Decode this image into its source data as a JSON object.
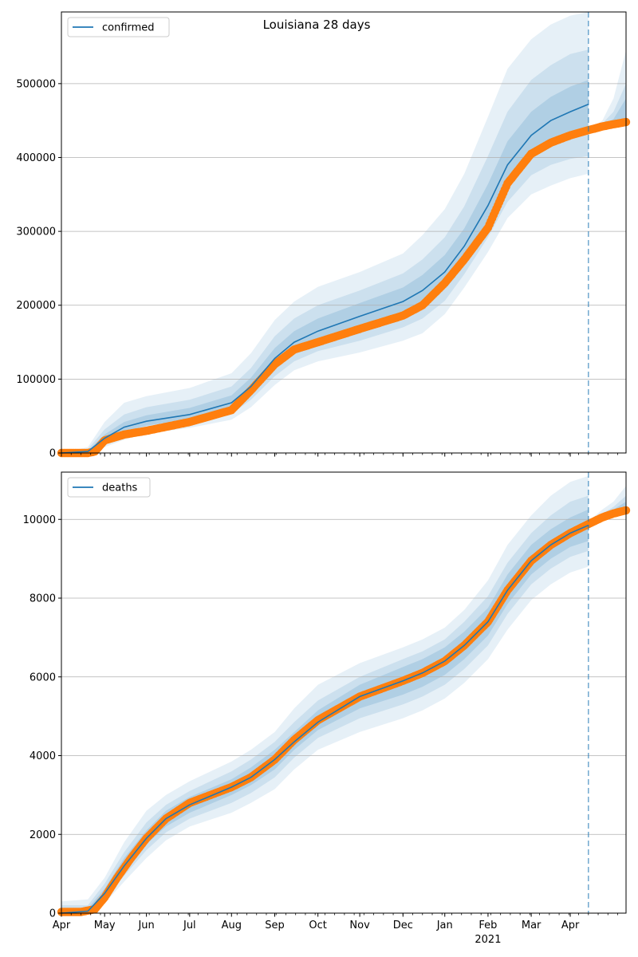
{
  "title": "Louisiana 28 days",
  "colors": {
    "model": "#1f77b4",
    "observed": "#ff7f0e",
    "band": "#1f77b4",
    "grid": "#b0b0b0"
  },
  "x_axis": {
    "tick_labels": [
      "Apr",
      "May",
      "Jun",
      "Jul",
      "Aug",
      "Sep",
      "Oct",
      "Nov",
      "Dec",
      "Jan",
      "Feb",
      "Mar",
      "Apr"
    ],
    "year_label": "2021"
  },
  "chart_data": [
    {
      "type": "line",
      "legend": "confirmed",
      "legend_position": "top-left",
      "grid": "horizontal",
      "x_range": [
        "2020-03-01",
        "2021-04-10"
      ],
      "ylim": [
        0,
        597000
      ],
      "yticks": [
        0,
        100000,
        200000,
        300000,
        400000,
        500000
      ],
      "forecast_start": "2021-03-14",
      "model_median": {
        "x": [
          "2020-03-01",
          "2020-03-20",
          "2020-04-01",
          "2020-04-15",
          "2020-05-01",
          "2020-06-01",
          "2020-07-01",
          "2020-07-15",
          "2020-08-01",
          "2020-08-15",
          "2020-09-01",
          "2020-10-01",
          "2020-11-01",
          "2020-11-15",
          "2020-12-01",
          "2020-12-15",
          "2021-01-01",
          "2021-01-15",
          "2021-02-01",
          "2021-02-15",
          "2021-03-01",
          "2021-03-14"
        ],
        "y": [
          0,
          2000,
          20000,
          35000,
          43000,
          52000,
          68000,
          90000,
          128000,
          150000,
          165000,
          185000,
          205000,
          220000,
          245000,
          280000,
          335000,
          390000,
          430000,
          450000,
          462000,
          472000
        ]
      },
      "bands": [
        {
          "level": "outer",
          "x": [
            "2020-03-01",
            "2020-03-20",
            "2020-04-01",
            "2020-04-15",
            "2020-05-01",
            "2020-06-01",
            "2020-07-01",
            "2020-07-15",
            "2020-08-01",
            "2020-08-15",
            "2020-09-01",
            "2020-10-01",
            "2020-11-01",
            "2020-11-15",
            "2020-12-01",
            "2020-12-15",
            "2021-01-01",
            "2021-01-15",
            "2021-02-01",
            "2021-02-15",
            "2021-03-01",
            "2021-03-14"
          ],
          "lower": [
            0,
            0,
            8000,
            18000,
            26000,
            34000,
            45000,
            62000,
            92000,
            112000,
            124000,
            136000,
            152000,
            162000,
            188000,
            224000,
            272000,
            318000,
            350000,
            362000,
            372000,
            378000
          ],
          "upper": [
            0,
            8000,
            42000,
            68000,
            77000,
            88000,
            108000,
            135000,
            180000,
            205000,
            225000,
            245000,
            270000,
            295000,
            330000,
            378000,
            455000,
            520000,
            560000,
            580000,
            592000,
            597000
          ]
        },
        {
          "level": "middle",
          "x": [
            "2020-03-01",
            "2020-03-20",
            "2020-04-01",
            "2020-04-15",
            "2020-05-01",
            "2020-06-01",
            "2020-07-01",
            "2020-07-15",
            "2020-08-01",
            "2020-08-15",
            "2020-09-01",
            "2020-10-01",
            "2020-11-01",
            "2020-11-15",
            "2020-12-01",
            "2020-12-15",
            "2021-01-01",
            "2021-01-15",
            "2021-02-01",
            "2021-02-15",
            "2021-03-01",
            "2021-03-14"
          ],
          "lower": [
            0,
            0,
            12000,
            24000,
            32000,
            40000,
            53000,
            72000,
            104000,
            124000,
            138000,
            152000,
            170000,
            182000,
            206000,
            242000,
            292000,
            340000,
            376000,
            390000,
            398000,
            402000
          ],
          "upper": [
            0,
            5000,
            32000,
            52000,
            62000,
            72000,
            90000,
            115000,
            158000,
            182000,
            200000,
            220000,
            243000,
            262000,
            292000,
            334000,
            402000,
            462000,
            505000,
            525000,
            540000,
            546000
          ]
        },
        {
          "level": "inner",
          "x": [
            "2020-03-01",
            "2020-03-20",
            "2020-04-01",
            "2020-04-15",
            "2020-05-01",
            "2020-06-01",
            "2020-07-01",
            "2020-07-15",
            "2020-08-01",
            "2020-08-15",
            "2020-09-01",
            "2020-10-01",
            "2020-11-01",
            "2020-11-15",
            "2020-12-01",
            "2020-12-15",
            "2021-01-01",
            "2021-01-15",
            "2021-02-01",
            "2021-02-15",
            "2021-03-01",
            "2021-03-14"
          ],
          "lower": [
            0,
            0,
            16000,
            29000,
            37000,
            46000,
            60000,
            80000,
            115000,
            136000,
            151000,
            168000,
            187000,
            200000,
            224000,
            260000,
            312000,
            364000,
            402000,
            418000,
            428000,
            432000
          ],
          "upper": [
            0,
            3000,
            25000,
            42000,
            51000,
            61000,
            78000,
            102000,
            142000,
            165000,
            182000,
            203000,
            224000,
            241000,
            268000,
            304000,
            364000,
            422000,
            462000,
            482000,
            496000,
            505000
          ]
        }
      ],
      "future_bands": [
        {
          "level": "outer",
          "x": [
            "2021-03-14",
            "2021-03-24",
            "2021-04-01",
            "2021-04-10"
          ],
          "lower": [
            436000,
            440000,
            443000,
            446000
          ],
          "upper": [
            438000,
            450000,
            480000,
            545000
          ]
        },
        {
          "level": "middle",
          "x": [
            "2021-03-14",
            "2021-03-24",
            "2021-04-01",
            "2021-04-10"
          ],
          "lower": [
            436000,
            441000,
            444000,
            447000
          ],
          "upper": [
            437000,
            446000,
            462000,
            500000
          ]
        },
        {
          "level": "inner",
          "x": [
            "2021-03-14",
            "2021-03-24",
            "2021-04-01",
            "2021-04-10"
          ],
          "lower": [
            436000,
            442000,
            445000,
            448000
          ],
          "upper": [
            437000,
            444000,
            452000,
            480000
          ]
        }
      ],
      "observed": {
        "x": [
          "2020-03-01",
          "2020-03-20",
          "2020-03-25",
          "2020-04-01",
          "2020-04-15",
          "2020-05-01",
          "2020-06-01",
          "2020-07-01",
          "2020-07-15",
          "2020-08-01",
          "2020-08-15",
          "2020-09-01",
          "2020-10-01",
          "2020-11-01",
          "2020-11-15",
          "2020-12-01",
          "2020-12-15",
          "2021-01-01",
          "2021-01-15",
          "2021-02-01",
          "2021-02-15",
          "2021-03-01",
          "2021-03-14",
          "2021-03-24",
          "2021-04-01",
          "2021-04-10"
        ],
        "y": [
          0,
          0,
          2000,
          17000,
          25000,
          30000,
          42000,
          58000,
          85000,
          120000,
          140000,
          150000,
          168000,
          186000,
          200000,
          230000,
          262000,
          305000,
          365000,
          405000,
          420000,
          430000,
          437000,
          442000,
          445000,
          448000
        ]
      }
    },
    {
      "type": "line",
      "legend": "deaths",
      "legend_position": "top-left",
      "grid": "horizontal",
      "x_range": [
        "2020-03-01",
        "2021-04-10"
      ],
      "ylim": [
        0,
        11200
      ],
      "yticks": [
        0,
        2000,
        4000,
        6000,
        8000,
        10000
      ],
      "forecast_start": "2021-03-14",
      "model_median": {
        "x": [
          "2020-03-01",
          "2020-03-20",
          "2020-04-01",
          "2020-04-15",
          "2020-05-01",
          "2020-05-15",
          "2020-06-01",
          "2020-07-01",
          "2020-07-15",
          "2020-08-01",
          "2020-08-15",
          "2020-09-01",
          "2020-10-01",
          "2020-11-01",
          "2020-11-15",
          "2020-12-01",
          "2020-12-15",
          "2021-01-01",
          "2021-01-15",
          "2021-02-01",
          "2021-02-15",
          "2021-03-01",
          "2021-03-14"
        ],
        "y": [
          0,
          50,
          500,
          1200,
          1900,
          2400,
          2750,
          3200,
          3450,
          3900,
          4350,
          4850,
          5500,
          5900,
          6100,
          6400,
          6800,
          7400,
          8200,
          8950,
          9350,
          9650,
          9850
        ]
      },
      "bands": [
        {
          "level": "outer",
          "x": [
            "2020-03-01",
            "2020-03-20",
            "2020-04-01",
            "2020-04-15",
            "2020-05-01",
            "2020-05-15",
            "2020-06-01",
            "2020-07-01",
            "2020-07-15",
            "2020-08-01",
            "2020-08-15",
            "2020-09-01",
            "2020-10-01",
            "2020-11-01",
            "2020-11-15",
            "2020-12-01",
            "2020-12-15",
            "2021-01-01",
            "2021-01-15",
            "2021-02-01",
            "2021-02-15",
            "2021-03-01",
            "2021-03-14"
          ],
          "lower": [
            0,
            0,
            250,
            800,
            1400,
            1850,
            2200,
            2550,
            2800,
            3150,
            3650,
            4150,
            4600,
            4950,
            5150,
            5450,
            5850,
            6450,
            7200,
            7950,
            8350,
            8650,
            8800
          ],
          "upper": [
            300,
            350,
            900,
            1800,
            2600,
            3000,
            3350,
            3850,
            4150,
            4600,
            5200,
            5800,
            6350,
            6750,
            6950,
            7250,
            7700,
            8450,
            9350,
            10100,
            10600,
            10950,
            11100
          ]
        },
        {
          "level": "middle",
          "x": [
            "2020-03-01",
            "2020-03-20",
            "2020-04-01",
            "2020-04-15",
            "2020-05-01",
            "2020-05-15",
            "2020-06-01",
            "2020-07-01",
            "2020-07-15",
            "2020-08-01",
            "2020-08-15",
            "2020-09-01",
            "2020-10-01",
            "2020-11-01",
            "2020-11-15",
            "2020-12-01",
            "2020-12-15",
            "2021-01-01",
            "2021-01-15",
            "2021-02-01",
            "2021-02-15",
            "2021-03-01",
            "2021-03-14"
          ],
          "lower": [
            0,
            10,
            350,
            950,
            1600,
            2050,
            2400,
            2800,
            3050,
            3450,
            3950,
            4450,
            4950,
            5300,
            5500,
            5800,
            6200,
            6800,
            7600,
            8350,
            8750,
            9050,
            9200
          ],
          "upper": [
            200,
            200,
            750,
            1550,
            2300,
            2750,
            3100,
            3600,
            3900,
            4350,
            4850,
            5400,
            6000,
            6450,
            6650,
            6950,
            7400,
            8050,
            8900,
            9650,
            10100,
            10450,
            10600
          ]
        },
        {
          "level": "inner",
          "x": [
            "2020-03-01",
            "2020-03-20",
            "2020-04-01",
            "2020-04-15",
            "2020-05-01",
            "2020-05-15",
            "2020-06-01",
            "2020-07-01",
            "2020-07-15",
            "2020-08-01",
            "2020-08-15",
            "2020-09-01",
            "2020-10-01",
            "2020-11-01",
            "2020-11-15",
            "2020-12-01",
            "2020-12-15",
            "2021-01-01",
            "2021-01-15",
            "2021-02-01",
            "2021-02-15",
            "2021-03-01",
            "2021-03-14"
          ],
          "lower": [
            0,
            20,
            420,
            1050,
            1750,
            2200,
            2550,
            3000,
            3250,
            3650,
            4150,
            4650,
            5200,
            5550,
            5750,
            6050,
            6450,
            7050,
            7850,
            8600,
            9000,
            9300,
            9450
          ],
          "upper": [
            120,
            120,
            620,
            1400,
            2100,
            2600,
            2950,
            3400,
            3700,
            4150,
            4600,
            5150,
            5800,
            6250,
            6450,
            6750,
            7150,
            7750,
            8600,
            9350,
            9750,
            10050,
            10250
          ]
        }
      ],
      "future_bands": [
        {
          "level": "outer",
          "x": [
            "2021-03-14",
            "2021-03-24",
            "2021-04-01",
            "2021-04-10"
          ],
          "lower": [
            9880,
            10000,
            10080,
            10120
          ],
          "upper": [
            9950,
            10250,
            10450,
            10850
          ]
        },
        {
          "level": "middle",
          "x": [
            "2021-03-14",
            "2021-03-24",
            "2021-04-01",
            "2021-04-10"
          ],
          "lower": [
            9880,
            10020,
            10110,
            10160
          ],
          "upper": [
            9930,
            10150,
            10320,
            10600
          ]
        },
        {
          "level": "inner",
          "x": [
            "2021-03-14",
            "2021-03-24",
            "2021-04-01",
            "2021-04-10"
          ],
          "lower": [
            9880,
            10050,
            10140,
            10200
          ],
          "upper": [
            9910,
            10100,
            10250,
            10450
          ]
        }
      ],
      "observed": {
        "x": [
          "2020-03-01",
          "2020-03-15",
          "2020-03-25",
          "2020-04-01",
          "2020-04-10",
          "2020-04-20",
          "2020-05-01",
          "2020-05-15",
          "2020-06-01",
          "2020-07-01",
          "2020-07-15",
          "2020-08-01",
          "2020-08-15",
          "2020-09-01",
          "2020-10-01",
          "2020-11-01",
          "2020-11-15",
          "2020-12-01",
          "2020-12-15",
          "2021-01-01",
          "2021-01-15",
          "2021-02-01",
          "2021-02-15",
          "2021-03-01",
          "2021-03-14",
          "2021-03-24",
          "2021-04-01",
          "2021-04-10"
        ],
        "y": [
          30,
          30,
          100,
          400,
          900,
          1400,
          1900,
          2400,
          2800,
          3200,
          3450,
          3900,
          4400,
          4900,
          5500,
          5900,
          6100,
          6400,
          6800,
          7400,
          8200,
          8950,
          9350,
          9650,
          9880,
          10050,
          10150,
          10230
        ]
      }
    }
  ]
}
